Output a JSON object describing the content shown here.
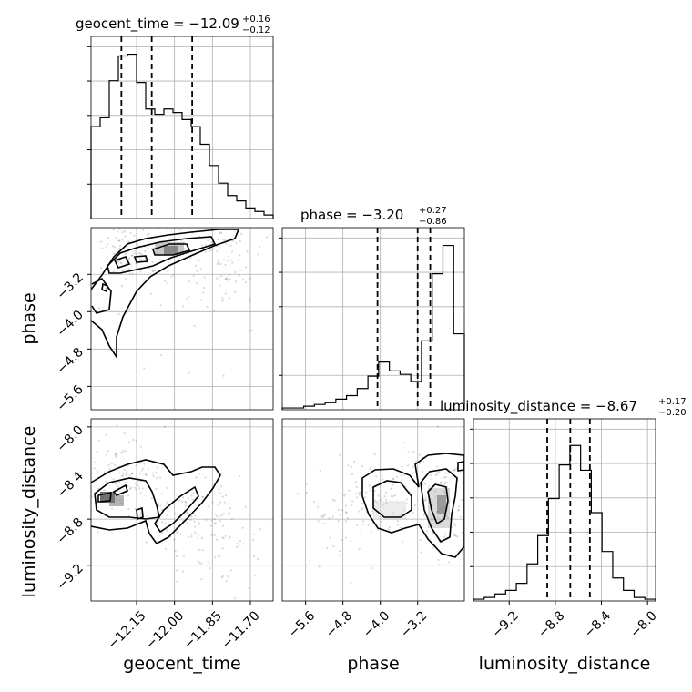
{
  "chart_data": {
    "type": "corner",
    "parameters": [
      {
        "name": "geocent_time",
        "xlabel": "geocent_time",
        "ylabel": "",
        "title_main": "geocent_time = −12.09",
        "title_upper": "+0.16",
        "title_lower": "−0.12",
        "range": [
          -12.33,
          -11.61
        ],
        "ticks": [
          "−12.15",
          "−12.00",
          "−11.85",
          "−11.70"
        ],
        "tick_values": [
          -12.15,
          -12.0,
          -11.85,
          -11.7
        ],
        "quantiles": [
          -12.21,
          -12.09,
          -11.93
        ],
        "hist": [
          0.52,
          0.57,
          0.78,
          0.92,
          0.93,
          0.77,
          0.62,
          0.59,
          0.62,
          0.6,
          0.56,
          0.52,
          0.42,
          0.3,
          0.2,
          0.13,
          0.1,
          0.06,
          0.04,
          0.02
        ]
      },
      {
        "name": "phase",
        "xlabel": "phase",
        "ylabel": "phase",
        "title_main": "phase = −3.20",
        "title_upper": "+0.27",
        "title_lower": "−0.86",
        "range": [
          -6.1,
          -2.2
        ],
        "ticks": [
          "−5.6",
          "−4.8",
          "−4.0",
          "−3.2"
        ],
        "tick_values": [
          -5.6,
          -4.8,
          -4.0,
          -3.2
        ],
        "quantiles": [
          -4.06,
          -3.2,
          -2.93
        ],
        "hist": [
          0.01,
          0.01,
          0.02,
          0.03,
          0.04,
          0.06,
          0.08,
          0.12,
          0.19,
          0.27,
          0.22,
          0.2,
          0.16,
          0.39,
          0.77,
          0.93,
          0.43
        ]
      },
      {
        "name": "luminosity_distance",
        "xlabel": "luminosity_distance",
        "ylabel": "luminosity_distance",
        "title_main": "luminosity_distance = −8.67",
        "title_upper": "+0.17",
        "title_lower": "−0.20",
        "range": [
          -9.51,
          -7.93
        ],
        "ticks": [
          "−9.2",
          "−8.8",
          "−8.4",
          "−8.0"
        ],
        "tick_values": [
          -9.2,
          -8.8,
          -8.4,
          -8.0
        ],
        "quantiles": [
          -8.87,
          -8.67,
          -8.5
        ],
        "hist": [
          0.01,
          0.02,
          0.04,
          0.06,
          0.1,
          0.21,
          0.37,
          0.58,
          0.77,
          0.88,
          0.74,
          0.5,
          0.28,
          0.13,
          0.06,
          0.02,
          0.01
        ]
      }
    ]
  }
}
